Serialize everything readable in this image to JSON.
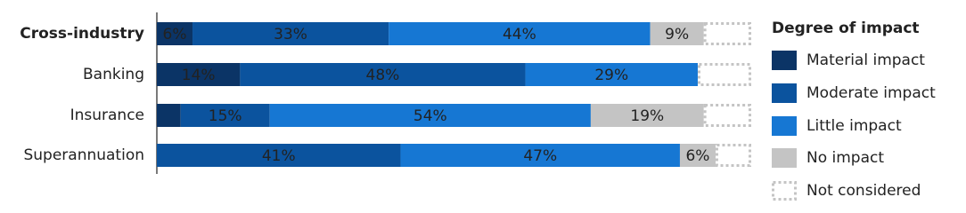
{
  "chart_data": {
    "type": "stacked-bar-horizontal",
    "legend_title": "Degree of impact",
    "categories": [
      "Cross-industry",
      "Banking",
      "Insurance",
      "Superannuation"
    ],
    "xlim": [
      0,
      100
    ],
    "series": [
      {
        "name": "Material impact",
        "color": "#0b3466",
        "values": [
          6,
          14,
          4,
          0
        ],
        "value_labels": [
          "6%",
          "14%",
          null,
          null
        ]
      },
      {
        "name": "Moderate impact",
        "color": "#0b539e",
        "values": [
          33,
          48,
          15,
          41
        ],
        "value_labels": [
          "33%",
          "48%",
          "15%",
          "41%"
        ]
      },
      {
        "name": "Little impact",
        "color": "#1677d3",
        "values": [
          44,
          29,
          54,
          47
        ],
        "value_labels": [
          "44%",
          "29%",
          "54%",
          "47%"
        ]
      },
      {
        "name": "No impact",
        "color": "#c4c4c4",
        "values": [
          9,
          0,
          19,
          6
        ],
        "value_labels": [
          "9%",
          null,
          "19%",
          "6%"
        ]
      },
      {
        "name": "Not considered",
        "color": "#c4c4c4",
        "outline": true,
        "values": [
          8,
          9,
          8,
          6
        ]
      }
    ]
  }
}
